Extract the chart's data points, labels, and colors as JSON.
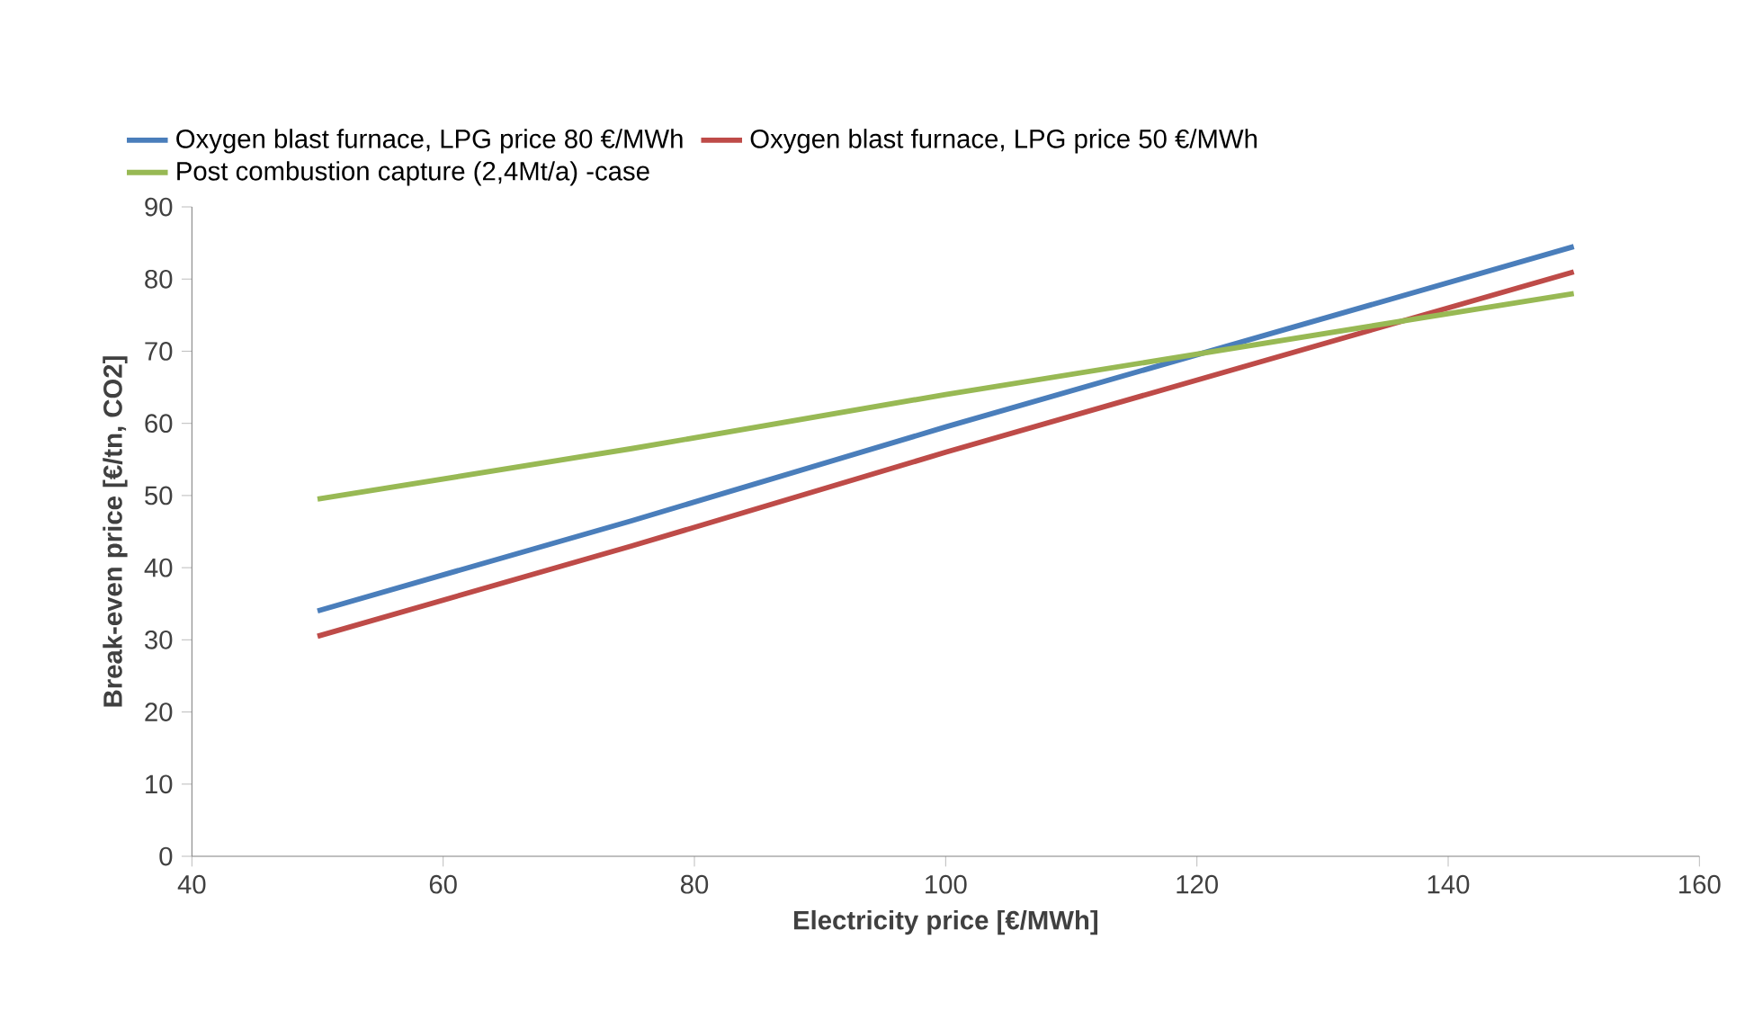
{
  "chart_data": {
    "type": "line",
    "xlabel": "Electricity price [€/MWh]",
    "ylabel": "Break-even price [€/tn, CO2]",
    "x": [
      50,
      75,
      100,
      125,
      150
    ],
    "series": [
      {
        "name": "Oxygen blast furnace, LPG price 80 €/MWh",
        "color": "#4a7ebb",
        "values": [
          34,
          46.5,
          59.5,
          72,
          84.5
        ]
      },
      {
        "name": "Oxygen blast furnace, LPG price 50 €/MWh",
        "color": "#be4b48",
        "values": [
          30.5,
          43,
          56,
          68.5,
          81
        ]
      },
      {
        "name": "Post combustion capture (2,4Mt/a) -case",
        "color": "#98b954",
        "values": [
          49.5,
          56.5,
          64,
          71,
          78
        ]
      }
    ],
    "xlim": [
      40,
      160
    ],
    "xticks": [
      40,
      60,
      80,
      100,
      120,
      140,
      160
    ],
    "ylim": [
      0,
      90
    ],
    "yticks": [
      0,
      10,
      20,
      30,
      40,
      50,
      60,
      70,
      80,
      90
    ],
    "grid": false,
    "legend": "top left",
    "marker": "none",
    "line_style": "solid"
  }
}
